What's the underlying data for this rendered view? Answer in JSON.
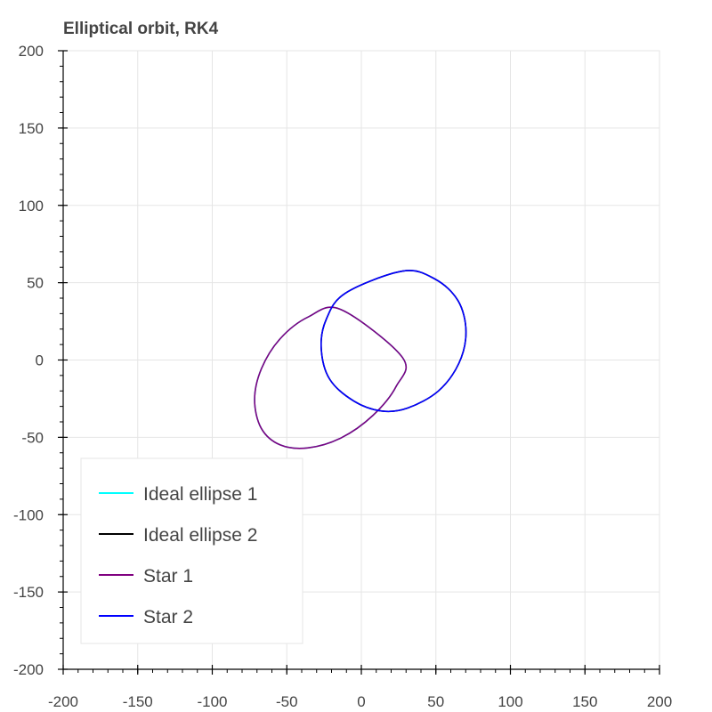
{
  "chart_data": {
    "type": "line",
    "title": "Elliptical orbit, RK4",
    "xlabel": "",
    "ylabel": "",
    "xlim": [
      -200,
      200
    ],
    "ylim": [
      -200,
      200
    ],
    "xticks": [
      -200,
      -150,
      -100,
      -50,
      0,
      50,
      100,
      150,
      200
    ],
    "yticks": [
      -200,
      -150,
      -100,
      -50,
      0,
      50,
      100,
      150,
      200
    ],
    "grid": true,
    "legend_position": "bottom-left",
    "series": [
      {
        "name": "Ideal ellipse 1",
        "color": "#00ffff",
        "x": [
          -13.6,
          -35.7,
          -54.4,
          -67.0,
          -71.6,
          -67.1,
          -54.4,
          -35.6,
          -13.6,
          7.7,
          23.4,
          27.6
        ],
        "y": [
          32.6,
          27.8,
          13.8,
          -5.6,
          -25.6,
          -44.2,
          -54.9,
          -56.8,
          -50.4,
          -35.9,
          -17.0,
          1.6
        ]
      },
      {
        "name": "Ideal ellipse 2",
        "color": "#000000",
        "x": [
          27.8,
          49.5,
          64.9,
          70.2,
          65.4,
          51.6,
          31.0,
          13.6,
          -5.1,
          -21.3,
          -26.9,
          -23.7,
          -10.6
        ],
        "y": [
          57.5,
          52.3,
          38.3,
          18.4,
          -2.2,
          -20.1,
          -31.1,
          -33.0,
          -26.5,
          -12.3,
          7.4,
          25.9,
          43.3
        ]
      },
      {
        "name": "Star 1",
        "color": "#800080",
        "x": [
          -13.6,
          -35.7,
          -54.4,
          -67.0,
          -71.6,
          -67.1,
          -54.4,
          -35.6,
          -13.6,
          7.7,
          23.4,
          27.6
        ],
        "y": [
          32.6,
          27.8,
          13.8,
          -5.6,
          -25.6,
          -44.2,
          -54.9,
          -56.8,
          -50.4,
          -35.9,
          -17.0,
          1.6
        ]
      },
      {
        "name": "Star 2",
        "color": "#0000ff",
        "x": [
          27.8,
          49.5,
          64.9,
          70.2,
          65.4,
          51.6,
          31.0,
          13.6,
          -5.1,
          -21.3,
          -26.9,
          -23.7,
          -10.6
        ],
        "y": [
          57.5,
          52.3,
          38.3,
          18.4,
          -2.2,
          -20.1,
          -31.1,
          -33.0,
          -26.5,
          -12.3,
          7.4,
          25.9,
          43.3
        ]
      }
    ]
  }
}
